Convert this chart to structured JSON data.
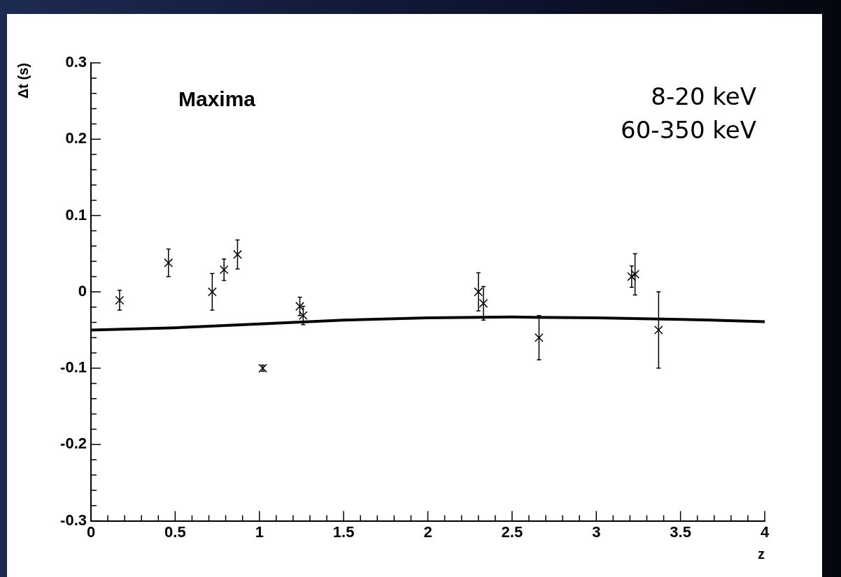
{
  "chart_data": {
    "type": "scatter",
    "xlabel": "z",
    "ylabel": "Δt (s)",
    "annotations": [
      "Maxima",
      "8-20 keV",
      "60-350 keV"
    ],
    "xlim": [
      0,
      4
    ],
    "ylim": [
      -0.3,
      0.3
    ],
    "xticks": [
      0,
      {
        "value": 0.1,
        "label": null
      },
      {
        "value": 0.2,
        "label": null
      },
      {
        "value": 0.3,
        "label": null
      },
      {
        "value": 0.4,
        "label": null
      },
      0.5,
      {
        "value": 0.6,
        "label": null
      },
      {
        "value": 0.7,
        "label": null
      },
      {
        "value": 0.8,
        "label": null
      },
      {
        "value": 0.9,
        "label": null
      },
      1,
      {
        "value": 1.1,
        "label": null
      },
      {
        "value": 1.2,
        "label": null
      },
      {
        "value": 1.3,
        "label": null
      },
      {
        "value": 1.4,
        "label": null
      },
      1.5,
      {
        "value": 1.6,
        "label": null
      },
      {
        "value": 1.7,
        "label": null
      },
      {
        "value": 1.8,
        "label": null
      },
      {
        "value": 1.9,
        "label": null
      },
      2,
      {
        "value": 2.1,
        "label": null
      },
      {
        "value": 2.2,
        "label": null
      },
      {
        "value": 2.3,
        "label": null
      },
      {
        "value": 2.4,
        "label": null
      },
      2.5,
      {
        "value": 2.6,
        "label": null
      },
      {
        "value": 2.7,
        "label": null
      },
      {
        "value": 2.8,
        "label": null
      },
      {
        "value": 2.9,
        "label": null
      },
      3,
      {
        "value": 3.1,
        "label": null
      },
      {
        "value": 3.2,
        "label": null
      },
      {
        "value": 3.3,
        "label": null
      },
      {
        "value": 3.4,
        "label": null
      },
      3.5,
      {
        "value": 3.6,
        "label": null
      },
      {
        "value": 3.7,
        "label": null
      },
      {
        "value": 3.8,
        "label": null
      },
      {
        "value": 3.9,
        "label": null
      },
      4
    ],
    "yticks": [
      -0.3,
      {
        "value": -0.28,
        "label": null
      },
      {
        "value": -0.26,
        "label": null
      },
      {
        "value": -0.24,
        "label": null
      },
      {
        "value": -0.22,
        "label": null
      },
      -0.2,
      {
        "value": -0.18,
        "label": null
      },
      {
        "value": -0.16,
        "label": null
      },
      {
        "value": -0.14,
        "label": null
      },
      {
        "value": -0.12,
        "label": null
      },
      -0.1,
      {
        "value": -0.08,
        "label": null
      },
      {
        "value": -0.06,
        "label": null
      },
      {
        "value": -0.04,
        "label": null
      },
      {
        "value": -0.02,
        "label": null
      },
      0,
      {
        "value": 0.02,
        "label": null
      },
      {
        "value": 0.04,
        "label": null
      },
      {
        "value": 0.06,
        "label": null
      },
      {
        "value": 0.08,
        "label": null
      },
      0.1,
      {
        "value": 0.12,
        "label": null
      },
      {
        "value": 0.14,
        "label": null
      },
      {
        "value": 0.16,
        "label": null
      },
      {
        "value": 0.18,
        "label": null
      },
      0.2,
      {
        "value": 0.22,
        "label": null
      },
      {
        "value": 0.24,
        "label": null
      },
      {
        "value": 0.26,
        "label": null
      },
      {
        "value": 0.28,
        "label": null
      },
      0.3
    ],
    "grid": false,
    "legend": false,
    "series": [
      {
        "type": "scatter",
        "marker": "cross",
        "color": "#000000",
        "x": [
          0.17,
          0.46,
          0.72,
          0.79,
          0.87,
          1.02,
          1.24,
          1.26,
          2.3,
          2.33,
          2.66,
          3.21,
          3.23,
          3.37
        ],
        "values": [
          -0.011,
          0.038,
          0,
          0.029,
          0.049,
          -0.1,
          -0.019,
          -0.031,
          0,
          -0.015,
          -0.06,
          0.02,
          0.023,
          -0.05
        ],
        "errors": [
          0.013,
          0.018,
          0.024,
          0.014,
          0.019,
          0.004,
          0.012,
          0.012,
          0.025,
          0.022,
          0.029,
          0.014,
          0.027,
          0.05
        ]
      },
      {
        "type": "line",
        "marker": "none",
        "color": "#000000",
        "x": [
          0,
          0.5,
          1,
          1.5,
          2,
          2.5,
          3,
          3.5,
          4
        ],
        "values": [
          -0.05,
          -0.047,
          -0.042,
          -0.037,
          -0.034,
          -0.033,
          -0.034,
          -0.036,
          -0.039
        ]
      }
    ]
  }
}
